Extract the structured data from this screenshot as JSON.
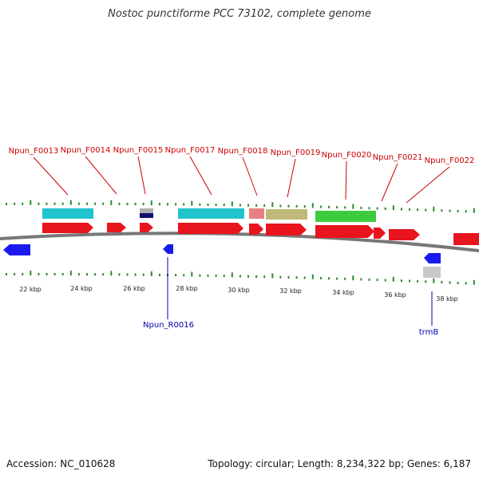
{
  "title": "Nostoc punctiforme PCC 73102, complete genome",
  "footer": {
    "accession": "Accession: NC_010628",
    "summary": "Topology: circular; Length: 8,234,322 bp; Genes: 6,187"
  },
  "colors": {
    "forward_gene": "#e8141e",
    "reverse_gene": "#1a1aee",
    "label_forward": "#cc0000",
    "label_reverse": "#0000aa",
    "tick": "#2a8a2a",
    "backbone": "#777777"
  },
  "scale_labels": [
    "22 kbp",
    "24 kbp",
    "26 kbp",
    "28 kbp",
    "30 kbp",
    "32 kbp",
    "34 kbp",
    "36 kbp",
    "38 kbp"
  ],
  "labels_forward": [
    "Npun_F0013",
    "Npun_F0014",
    "Npun_F0015",
    "Npun_F0017",
    "Npun_F0018",
    "Npun_F0019",
    "Npun_F0020",
    "Npun_F0021",
    "Npun_F0022"
  ],
  "labels_reverse": [
    "Npun_R0016",
    "trmB"
  ]
}
